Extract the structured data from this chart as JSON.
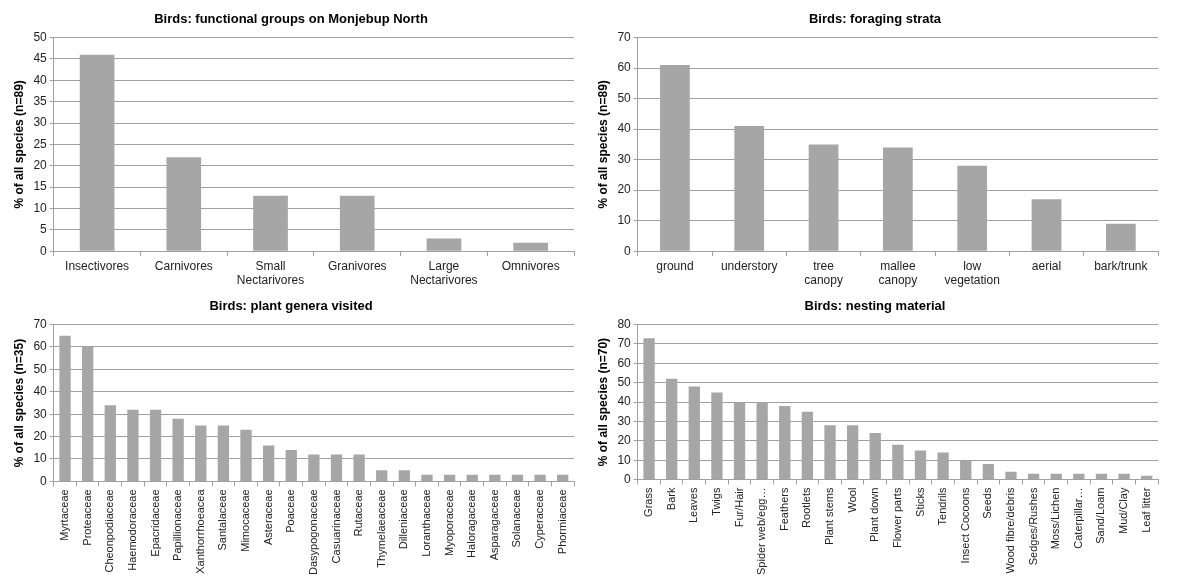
{
  "chart_data": [
    {
      "type": "bar",
      "title": "Birds: functional groups on Monjebup North",
      "ylabel": "% of all species (n=89)",
      "categories": [
        "Insectivores",
        "Carnivores",
        "Small Nectarivores",
        "Granivores",
        "Large Nectarivores",
        "Omnivores"
      ],
      "values": [
        46,
        22,
        13,
        13,
        3,
        2
      ],
      "color": "#a6a6a6",
      "ylim": [
        0,
        50
      ],
      "yticks": [
        0,
        5,
        10,
        15,
        20,
        25,
        30,
        35,
        40,
        45,
        50
      ],
      "grid": "y",
      "legend": false
    },
    {
      "type": "bar",
      "title": "Birds: foraging strata",
      "ylabel": "% of all species (n=89)",
      "categories": [
        "ground",
        "understory",
        "tree canopy",
        "mallee canopy",
        "low vegetation",
        "aerial",
        "bark/trunk"
      ],
      "values": [
        61,
        41,
        35,
        34,
        28,
        17,
        9
      ],
      "color": "#a6a6a6",
      "ylim": [
        0,
        70
      ],
      "yticks": [
        0,
        10,
        20,
        30,
        40,
        50,
        60,
        70
      ],
      "grid": "y",
      "legend": false
    },
    {
      "type": "bar",
      "title": "Birds: plant genera visited",
      "ylabel": "% of all species (n=35)",
      "categories": [
        "Myrtaceae",
        "Proteaceae",
        "Cheonpodiaceae",
        "Haemodoraceae",
        "Epacridaceae",
        "Papillionaceae",
        "Xanthorrhoeacea",
        "Santalaceae",
        "Mimocaceae",
        "Asteraceae",
        "Poaceae",
        "Dasypogonaceae",
        "Casuarinaceae",
        "Rutaceae",
        "Thymelaeaceae",
        "Dilleniaceae",
        "Loranthaceae",
        "Myoporaceae",
        "Haloragaceae",
        "Asparagaceae",
        "Solanaceae",
        "Cyperaceae",
        "Phormiaceae"
      ],
      "values": [
        65,
        60,
        34,
        32,
        32,
        28,
        25,
        25,
        23,
        16,
        14,
        12,
        12,
        12,
        5,
        5,
        3,
        3,
        3,
        3,
        3,
        3,
        3
      ],
      "color": "#a6a6a6",
      "ylim": [
        0,
        70
      ],
      "yticks": [
        0,
        10,
        20,
        30,
        40,
        50,
        60,
        70
      ],
      "grid": "y",
      "legend": false
    },
    {
      "type": "bar",
      "title": "Birds: nesting material",
      "ylabel": "% of all species (n=70)",
      "categories": [
        "Grass",
        "Bark",
        "Leaves",
        "Twigs",
        "Fur/Hair",
        "Spider web/egg…",
        "Feathers",
        "Rootlets",
        "Plant stems",
        "Wool",
        "Plant down",
        "Flower parts",
        "Sticks",
        "Tendrils",
        "Insect Cocoons",
        "Seeds",
        "Wood fibre/debris",
        "Sedges/Rushes",
        "Moss/Lichen",
        "Caterpillar…",
        "Sand/Loam",
        "Mud/Clay",
        "Leaf litter"
      ],
      "values": [
        73,
        52,
        48,
        45,
        40,
        40,
        38,
        35,
        28,
        28,
        24,
        18,
        15,
        14,
        10,
        8,
        4,
        3,
        3,
        3,
        3,
        3,
        2
      ],
      "color": "#a6a6a6",
      "ylim": [
        0,
        80
      ],
      "yticks": [
        0,
        10,
        20,
        30,
        40,
        50,
        60,
        70,
        80
      ],
      "grid": "y",
      "legend": false
    }
  ]
}
